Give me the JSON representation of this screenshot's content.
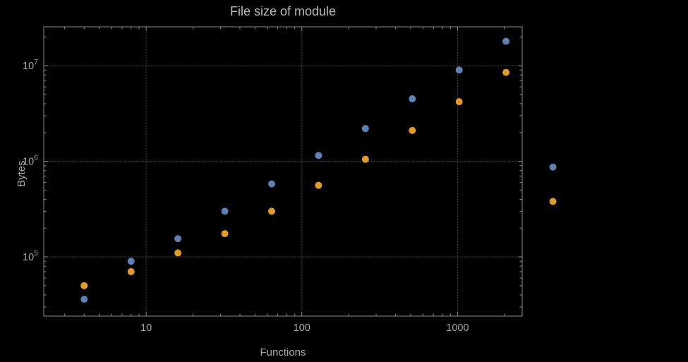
{
  "chart_data": {
    "type": "scatter",
    "title": "File size of module",
    "xlabel": "Functions",
    "ylabel": "Bytes",
    "xscale": "log",
    "yscale": "log",
    "xlim": [
      2.2,
      2600
    ],
    "ylim": [
      24000,
      25500000
    ],
    "grid": "dotted",
    "frame": true,
    "legend": "none",
    "x_major_ticks": [
      10,
      100,
      1000
    ],
    "x_tick_labels": [
      "10",
      "100",
      "1000"
    ],
    "y_major_ticks": [
      100000,
      1000000,
      10000000
    ],
    "y_tick_exponents": [
      "5",
      "6",
      "7"
    ],
    "x": [
      4,
      8,
      16,
      32,
      64,
      128,
      256,
      512,
      1024,
      2048,
      4096
    ],
    "series": [
      {
        "name": "blue-series",
        "color": "#5e81b5",
        "values": [
          36000,
          90000,
          155000,
          300000,
          580000,
          1150000,
          2200000,
          4500000,
          9000000,
          18000000,
          870000
        ]
      },
      {
        "name": "orange-series",
        "color": "#e19c24",
        "values": [
          50000,
          70000,
          110000,
          175000,
          300000,
          560000,
          1050000,
          2100000,
          4200000,
          8500000,
          380000
        ]
      }
    ],
    "marker_size_px": 5,
    "colors": {
      "background": "#000000",
      "frame": "#8a8a8a",
      "grid": "#585858",
      "text": "#a8a8a8"
    }
  }
}
